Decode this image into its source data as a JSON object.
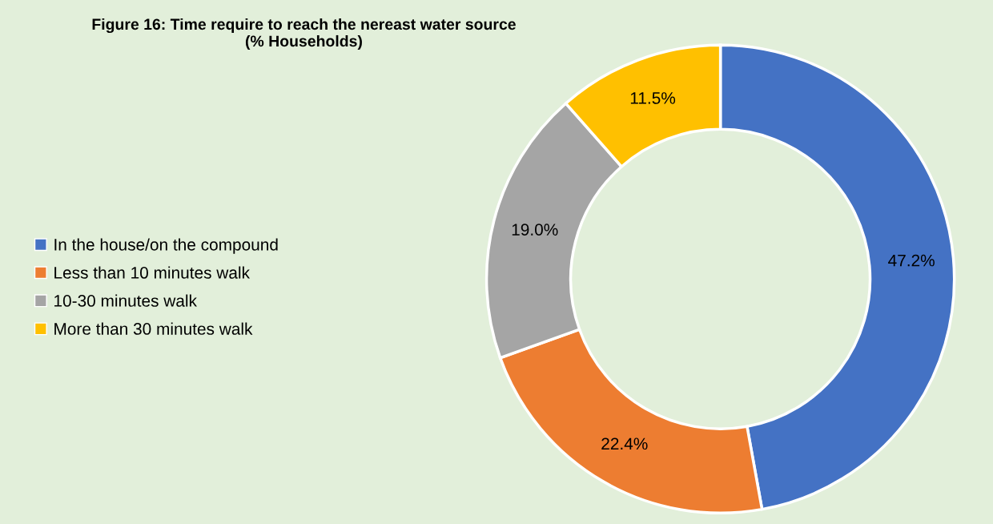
{
  "chart_data": {
    "type": "donut",
    "title": "Figure 16: Time require to reach the nereast water source\n(% Households)",
    "categories": [
      "In the house/on the compound",
      "Less than 10 minutes walk",
      "10-30 minutes walk",
      "More than 30 minutes walk"
    ],
    "values": [
      47.2,
      22.4,
      19.0,
      11.5
    ],
    "value_labels": [
      "47.2%",
      "22.4%",
      "19.0%",
      "11.5%"
    ],
    "colors": [
      "#4472c4",
      "#ed7d31",
      "#a5a5a5",
      "#ffc000"
    ],
    "legend": "left"
  }
}
